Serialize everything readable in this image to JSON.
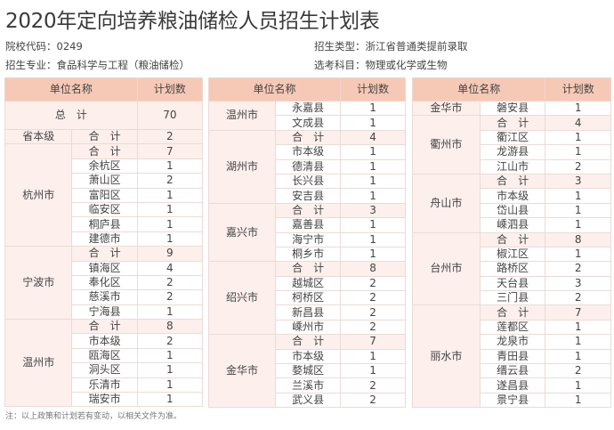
{
  "title": "2020年定向培养粮油储检人员招生计划表",
  "meta": {
    "school_code": "院校代码：0249",
    "major": "招生专业：食品科学与工程（粮油储检）",
    "type": "招生类型：浙江省普通类提前录取",
    "subjects": "选考科目：物理或化学或生物"
  },
  "headers": {
    "unit": "单位名称",
    "plan": "计划数"
  },
  "total": {
    "label": "总　计",
    "value": "70"
  },
  "tables": [
    [
      {
        "city": "省本级",
        "rows": [
          [
            "合　计",
            "2",
            1
          ]
        ]
      },
      {
        "city": "杭州市",
        "rows": [
          [
            "合　计",
            "7",
            1
          ],
          [
            "余杭区",
            "1"
          ],
          [
            "萧山区",
            "2"
          ],
          [
            "富阳区",
            "1"
          ],
          [
            "临安区",
            "1"
          ],
          [
            "桐庐县",
            "1"
          ],
          [
            "建德市",
            "1"
          ]
        ]
      },
      {
        "city": "宁波市",
        "rows": [
          [
            "合　计",
            "9",
            1
          ],
          [
            "镇海区",
            "4"
          ],
          [
            "奉化区",
            "2"
          ],
          [
            "慈溪市",
            "2"
          ],
          [
            "宁海县",
            "1"
          ]
        ]
      },
      {
        "city": "温州市",
        "rows": [
          [
            "合　计",
            "8",
            1
          ],
          [
            "市本级",
            "2"
          ],
          [
            "瓯海区",
            "1"
          ],
          [
            "洞头区",
            "1"
          ],
          [
            "乐清市",
            "1"
          ],
          [
            "瑞安市",
            "1"
          ]
        ]
      }
    ],
    [
      {
        "city": "温州市",
        "rows": [
          [
            "永嘉县",
            "1"
          ],
          [
            "文成县",
            "1"
          ]
        ]
      },
      {
        "city": "湖州市",
        "rows": [
          [
            "合　计",
            "4",
            1
          ],
          [
            "市本级",
            "1"
          ],
          [
            "德清县",
            "1"
          ],
          [
            "长兴县",
            "1"
          ],
          [
            "安吉县",
            "1"
          ]
        ]
      },
      {
        "city": "嘉兴市",
        "rows": [
          [
            "合　计",
            "3",
            1
          ],
          [
            "嘉善县",
            "1"
          ],
          [
            "海宁市",
            "1"
          ],
          [
            "桐乡市",
            "1"
          ]
        ]
      },
      {
        "city": "绍兴市",
        "rows": [
          [
            "合　计",
            "8",
            1
          ],
          [
            "越城区",
            "2"
          ],
          [
            "柯桥区",
            "2"
          ],
          [
            "新昌县",
            "2"
          ],
          [
            "嵊州市",
            "2"
          ]
        ]
      },
      {
        "city": "金华市",
        "rows": [
          [
            "合　计",
            "7",
            1
          ],
          [
            "市本级",
            "1"
          ],
          [
            "婺城区",
            "1"
          ],
          [
            "兰溪市",
            "2"
          ],
          [
            "武义县",
            "2"
          ]
        ]
      }
    ],
    [
      {
        "city": "金华市",
        "rows": [
          [
            "磐安县",
            "1"
          ]
        ]
      },
      {
        "city": "衢州市",
        "rows": [
          [
            "合　计",
            "4",
            1
          ],
          [
            "衢江区",
            "1"
          ],
          [
            "龙游县",
            "1"
          ],
          [
            "江山市",
            "2"
          ]
        ]
      },
      {
        "city": "舟山市",
        "rows": [
          [
            "合　计",
            "3",
            1
          ],
          [
            "市本级",
            "1"
          ],
          [
            "岱山县",
            "1"
          ],
          [
            "嵊泗县",
            "1"
          ]
        ]
      },
      {
        "city": "台州市",
        "rows": [
          [
            "合　计",
            "8",
            1
          ],
          [
            "椒江区",
            "1"
          ],
          [
            "路桥区",
            "2"
          ],
          [
            "天台县",
            "3"
          ],
          [
            "三门县",
            "2"
          ]
        ]
      },
      {
        "city": "丽水市",
        "rows": [
          [
            "合　计",
            "7",
            1
          ],
          [
            "莲都区",
            "1"
          ],
          [
            "龙泉市",
            "1"
          ],
          [
            "青田县",
            "1"
          ],
          [
            "缙云县",
            "2"
          ],
          [
            "遂昌县",
            "1"
          ],
          [
            "景宁县",
            "1"
          ]
        ]
      }
    ]
  ],
  "note": "注：以上政策和计划若有变动，以相关文件为准。"
}
